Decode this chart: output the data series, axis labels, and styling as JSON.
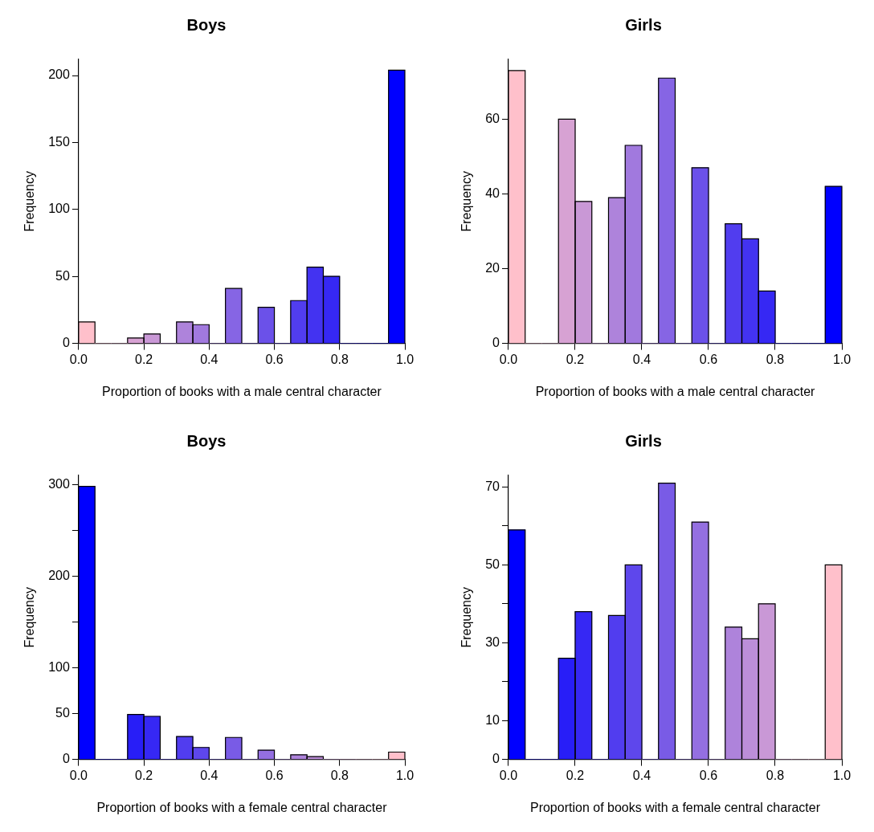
{
  "chart_data": [
    {
      "type": "histogram",
      "title": "Boys",
      "xlabel": "Proportion of books with a male central character",
      "ylabel": "Frequency",
      "bins": [
        0,
        0.05,
        0.1,
        0.15,
        0.2,
        0.25,
        0.3,
        0.35,
        0.4,
        0.45,
        0.5,
        0.55,
        0.6,
        0.65,
        0.7,
        0.75,
        0.8,
        0.85,
        0.9,
        0.95,
        1
      ],
      "values": [
        16,
        0,
        0,
        4,
        7,
        0,
        16,
        14,
        0,
        41,
        0,
        27,
        0,
        32,
        57,
        50,
        0,
        0,
        0,
        204
      ],
      "colors": [
        "#ffc0cb",
        "#f2b6ce",
        "#e4acd0",
        "#d7a2d3",
        "#c998d6",
        "#bc8ed9",
        "#ae83db",
        "#a179de",
        "#946fe1",
        "#8665e4",
        "#795be6",
        "#6b51e9",
        "#5e47ec",
        "#513def",
        "#4333f1",
        "#3628f4",
        "#281ef7",
        "#1b14fa",
        "#0d0afc",
        "#0000ff"
      ],
      "xlim": [
        0,
        1
      ],
      "xticks": [
        {
          "value": 0,
          "label": "0.0"
        },
        {
          "value": 0.2,
          "label": "0.2"
        },
        {
          "value": 0.4,
          "label": "0.4"
        },
        {
          "value": 0.6,
          "label": "0.6"
        },
        {
          "value": 0.8,
          "label": "0.8"
        },
        {
          "value": 1,
          "label": "1.0"
        }
      ],
      "ylim": [
        0,
        212
      ],
      "yticks": [
        0,
        50,
        100,
        150,
        200
      ],
      "grid": false
    },
    {
      "type": "histogram",
      "title": "Girls",
      "xlabel": "Proportion of books with a male central character",
      "ylabel": "Frequency",
      "bins": [
        0,
        0.05,
        0.1,
        0.15,
        0.2,
        0.25,
        0.3,
        0.35,
        0.4,
        0.45,
        0.5,
        0.55,
        0.6,
        0.65,
        0.7,
        0.75,
        0.8,
        0.85,
        0.9,
        0.95,
        1
      ],
      "values": [
        73,
        0,
        0,
        60,
        38,
        0,
        39,
        53,
        0,
        71,
        0,
        47,
        0,
        32,
        28,
        14,
        0,
        0,
        0,
        42
      ],
      "colors": [
        "#ffc0cb",
        "#f2b6ce",
        "#e4acd0",
        "#d7a2d3",
        "#c998d6",
        "#bc8ed9",
        "#ae83db",
        "#a179de",
        "#946fe1",
        "#8665e4",
        "#795be6",
        "#6b51e9",
        "#5e47ec",
        "#513def",
        "#4333f1",
        "#3628f4",
        "#281ef7",
        "#1b14fa",
        "#0d0afc",
        "#0000ff"
      ],
      "xlim": [
        0,
        1
      ],
      "xticks": [
        {
          "value": 0,
          "label": "0.0"
        },
        {
          "value": 0.2,
          "label": "0.2"
        },
        {
          "value": 0.4,
          "label": "0.4"
        },
        {
          "value": 0.6,
          "label": "0.6"
        },
        {
          "value": 0.8,
          "label": "0.8"
        },
        {
          "value": 1,
          "label": "1.0"
        }
      ],
      "ylim": [
        0,
        76
      ],
      "yticks": [
        0,
        20,
        40,
        60
      ],
      "grid": false
    },
    {
      "type": "histogram",
      "title": "Boys",
      "xlabel": "Proportion of books with a female central character",
      "ylabel": "Frequency",
      "bins": [
        0,
        0.05,
        0.1,
        0.15,
        0.2,
        0.25,
        0.3,
        0.35,
        0.4,
        0.45,
        0.5,
        0.55,
        0.6,
        0.65,
        0.7,
        0.75,
        0.8,
        0.85,
        0.9,
        0.95,
        1
      ],
      "values": [
        298,
        0,
        0,
        49,
        47,
        0,
        25,
        13,
        0,
        24,
        0,
        10,
        0,
        5,
        3,
        0,
        0,
        0,
        0,
        8
      ],
      "colors": [
        "#0000ff",
        "#0d0afc",
        "#1b14fa",
        "#281ef7",
        "#3628f4",
        "#4333f1",
        "#513def",
        "#5e47ec",
        "#6b51e9",
        "#795be6",
        "#8665e4",
        "#946fe1",
        "#a179de",
        "#ae83db",
        "#bc8ed9",
        "#c998d6",
        "#d7a2d3",
        "#e4acd0",
        "#f2b6ce",
        "#ffc0cb"
      ],
      "xlim": [
        0,
        1
      ],
      "xticks": [
        {
          "value": 0,
          "label": "0.0"
        },
        {
          "value": 0.2,
          "label": "0.2"
        },
        {
          "value": 0.4,
          "label": "0.4"
        },
        {
          "value": 0.6,
          "label": "0.6"
        },
        {
          "value": 0.8,
          "label": "0.8"
        },
        {
          "value": 1,
          "label": "1.0"
        }
      ],
      "ylim": [
        0,
        310
      ],
      "yticks": [
        0,
        50,
        100,
        {
          "value": 150,
          "label": null
        },
        200,
        {
          "value": 250,
          "label": null
        },
        300
      ],
      "grid": false
    },
    {
      "type": "histogram",
      "title": "Girls",
      "xlabel": "Proportion of books with a female central character",
      "ylabel": "Frequency",
      "bins": [
        0,
        0.05,
        0.1,
        0.15,
        0.2,
        0.25,
        0.3,
        0.35,
        0.4,
        0.45,
        0.5,
        0.55,
        0.6,
        0.65,
        0.7,
        0.75,
        0.8,
        0.85,
        0.9,
        0.95,
        1
      ],
      "values": [
        59,
        0,
        0,
        26,
        38,
        0,
        37,
        50,
        0,
        71,
        0,
        61,
        0,
        34,
        31,
        40,
        0,
        0,
        0,
        50
      ],
      "colors": [
        "#0000ff",
        "#0d0afc",
        "#1b14fa",
        "#281ef7",
        "#3628f4",
        "#4333f1",
        "#513def",
        "#5e47ec",
        "#6b51e9",
        "#795be6",
        "#8665e4",
        "#946fe1",
        "#a179de",
        "#ae83db",
        "#bc8ed9",
        "#c998d6",
        "#d7a2d3",
        "#e4acd0",
        "#f2b6ce",
        "#ffc0cb"
      ],
      "xlim": [
        0,
        1
      ],
      "xticks": [
        {
          "value": 0,
          "label": "0.0"
        },
        {
          "value": 0.2,
          "label": "0.2"
        },
        {
          "value": 0.4,
          "label": "0.4"
        },
        {
          "value": 0.6,
          "label": "0.6"
        },
        {
          "value": 0.8,
          "label": "0.8"
        },
        {
          "value": 1,
          "label": "1.0"
        }
      ],
      "ylim": [
        0,
        73
      ],
      "yticks": [
        0,
        10,
        {
          "value": 20,
          "label": null
        },
        30,
        {
          "value": 40,
          "label": null
        },
        50,
        {
          "value": 60,
          "label": null
        },
        70
      ],
      "grid": false
    }
  ]
}
